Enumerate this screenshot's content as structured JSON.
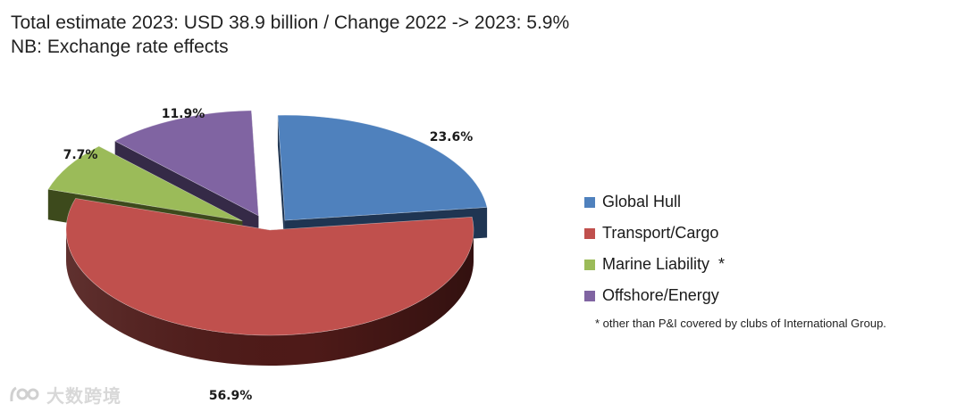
{
  "header": {
    "line1": "Total estimate 2023: USD 38.9 billion / Change 2022 -> 2023: 5.9%",
    "line2": "NB: Exchange rate effects"
  },
  "chart_data": {
    "type": "pie",
    "style": "3d-exploded",
    "categories": [
      "Global Hull",
      "Transport/Cargo",
      "Marine Liability",
      "Offshore/Energy"
    ],
    "values": [
      23.6,
      56.9,
      7.7,
      11.9
    ],
    "labels": [
      "23.6%",
      "56.9%",
      "7.7%",
      "11.9%"
    ],
    "colors": [
      "#4f81bd",
      "#c0504d",
      "#9bbb59",
      "#8064a2"
    ],
    "side_colors": [
      "#1f3552",
      "#4e1a18",
      "#3d4a1c",
      "#352a47"
    ],
    "legend_position": "right"
  },
  "legend": {
    "items": [
      {
        "label": "Global Hull",
        "color": "#4f81bd"
      },
      {
        "label": "Transport/Cargo",
        "color": "#c0504d"
      },
      {
        "label": "Marine Liability  *",
        "color": "#9bbb59"
      },
      {
        "label": "Offshore/Energy",
        "color": "#8064a2"
      }
    ]
  },
  "footnote": "* other than P&I covered by clubs of International Group.",
  "watermark": {
    "text": "大数跨境"
  }
}
